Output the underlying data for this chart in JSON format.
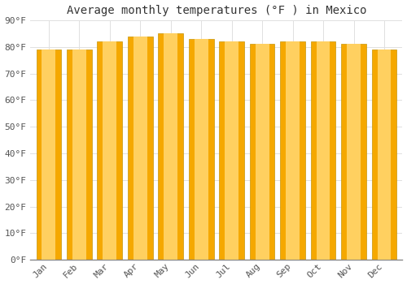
{
  "title": "Average monthly temperatures (°F ) in Mexico",
  "months": [
    "Jan",
    "Feb",
    "Mar",
    "Apr",
    "May",
    "Jun",
    "Jul",
    "Aug",
    "Sep",
    "Oct",
    "Nov",
    "Dec"
  ],
  "values": [
    79,
    79,
    82,
    84,
    85,
    83,
    82,
    81,
    82,
    82,
    81,
    79
  ],
  "bar_color_center": "#FFD060",
  "bar_color_edge": "#F5A800",
  "bar_edge_color": "#C8960A",
  "ylim": [
    0,
    90
  ],
  "yticks": [
    0,
    10,
    20,
    30,
    40,
    50,
    60,
    70,
    80,
    90
  ],
  "ytick_labels": [
    "0°F",
    "10°F",
    "20°F",
    "30°F",
    "40°F",
    "50°F",
    "60°F",
    "70°F",
    "80°F",
    "90°F"
  ],
  "background_color": "#FFFFFF",
  "grid_color": "#E0E0E0",
  "title_fontsize": 10,
  "tick_fontsize": 8,
  "bar_width": 0.82
}
